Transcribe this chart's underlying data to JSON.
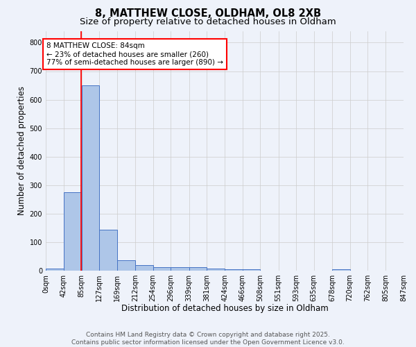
{
  "title_line1": "8, MATTHEW CLOSE, OLDHAM, OL8 2XB",
  "title_line2": "Size of property relative to detached houses in Oldham",
  "xlabel": "Distribution of detached houses by size in Oldham",
  "ylabel": "Number of detached properties",
  "bar_color": "#aec6e8",
  "bar_edge_color": "#4472c4",
  "background_color": "#eef2fa",
  "grid_color": "#cccccc",
  "red_line_x": 84,
  "annotation_text": "8 MATTHEW CLOSE: 84sqm\n← 23% of detached houses are smaller (260)\n77% of semi-detached houses are larger (890) →",
  "annotation_box_color": "white",
  "annotation_box_edge": "red",
  "categories": [
    "0sqm",
    "42sqm",
    "85sqm",
    "127sqm",
    "169sqm",
    "212sqm",
    "254sqm",
    "296sqm",
    "339sqm",
    "381sqm",
    "424sqm",
    "466sqm",
    "508sqm",
    "551sqm",
    "593sqm",
    "635sqm",
    "678sqm",
    "720sqm",
    "762sqm",
    "805sqm",
    "847sqm"
  ],
  "bin_edges": [
    0,
    42,
    85,
    127,
    169,
    212,
    254,
    296,
    339,
    381,
    424,
    466,
    508,
    551,
    593,
    635,
    678,
    720,
    762,
    805,
    847
  ],
  "values": [
    8,
    275,
    650,
    143,
    37,
    20,
    13,
    12,
    13,
    7,
    5,
    5,
    0,
    0,
    0,
    0,
    5,
    0,
    0,
    0,
    0
  ],
  "ylim": [
    0,
    840
  ],
  "yticks": [
    0,
    100,
    200,
    300,
    400,
    500,
    600,
    700,
    800
  ],
  "footer_line1": "Contains HM Land Registry data © Crown copyright and database right 2025.",
  "footer_line2": "Contains public sector information licensed under the Open Government Licence v3.0.",
  "title_fontsize": 10.5,
  "subtitle_fontsize": 9.5,
  "axis_label_fontsize": 8.5,
  "tick_fontsize": 7,
  "footer_fontsize": 6.5,
  "annot_fontsize": 7.5
}
